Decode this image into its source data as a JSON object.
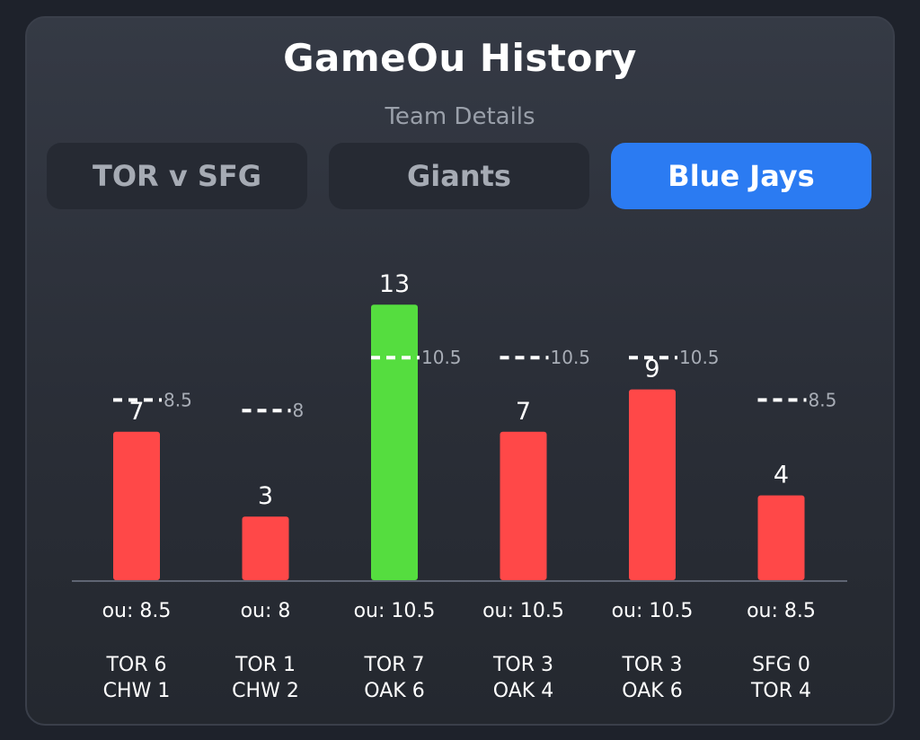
{
  "header": {
    "title": "GameOu History",
    "subtitle": "Team Details"
  },
  "tabs": [
    {
      "label": "TOR v SFG",
      "active": false
    },
    {
      "label": "Giants",
      "active": false
    },
    {
      "label": "Blue Jays",
      "active": true
    }
  ],
  "colors": {
    "over": "#55dd3f",
    "under": "#ff4848",
    "active_tab": "#2b7bf2"
  },
  "chart_data": {
    "type": "bar",
    "games": [
      {
        "total": 7,
        "line": 8.5,
        "ou_label": "ou: 8.5",
        "score_top": "TOR 6",
        "score_bottom": "CHW 1",
        "result": "under"
      },
      {
        "total": 3,
        "line": 8,
        "ou_label": "ou: 8",
        "score_top": "TOR 1",
        "score_bottom": "CHW 2",
        "result": "under"
      },
      {
        "total": 13,
        "line": 10.5,
        "ou_label": "ou: 10.5",
        "score_top": "TOR 7",
        "score_bottom": "OAK 6",
        "result": "over"
      },
      {
        "total": 7,
        "line": 10.5,
        "ou_label": "ou: 10.5",
        "score_top": "TOR 3",
        "score_bottom": "OAK 4",
        "result": "under"
      },
      {
        "total": 9,
        "line": 10.5,
        "ou_label": "ou: 10.5",
        "score_top": "TOR 3",
        "score_bottom": "OAK 6",
        "result": "under"
      },
      {
        "total": 4,
        "line": 8.5,
        "ou_label": "ou: 8.5",
        "score_top": "SFG 0",
        "score_bottom": "TOR 4",
        "result": "under"
      }
    ]
  }
}
